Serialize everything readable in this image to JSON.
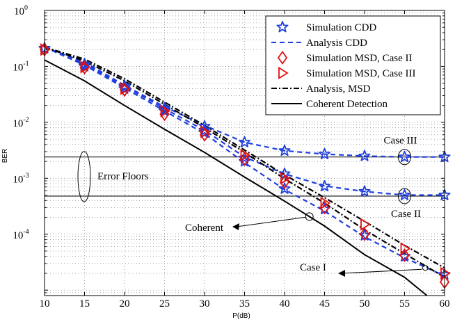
{
  "chart_data": {
    "type": "line",
    "xlabel": "P(dB)",
    "ylabel": "BER",
    "xlim": [
      10,
      60
    ],
    "ylim": [
      8e-06,
      1
    ],
    "yscale": "log",
    "grid": "dotted",
    "legend_position": "top-right",
    "x_ticks": [
      10,
      15,
      20,
      25,
      30,
      35,
      40,
      45,
      50,
      55,
      60
    ],
    "y_ticks": [
      {
        "value": 1,
        "label": "10",
        "exp": "0"
      },
      {
        "value": 0.1,
        "label": "10",
        "exp": "-1"
      },
      {
        "value": 0.01,
        "label": "10",
        "exp": "-2"
      },
      {
        "value": 0.001,
        "label": "10",
        "exp": "-3"
      },
      {
        "value": 0.0001,
        "label": "10",
        "exp": "-4"
      }
    ],
    "series": [
      {
        "name": "Simulation CDD",
        "style": "marker",
        "marker": "star",
        "color": "#1f3fe0",
        "curves": [
          {
            "x": [
              10,
              15,
              20,
              25,
              30,
              35,
              40,
              45,
              50,
              55,
              60
            ],
            "y": [
              0.21,
              0.11,
              0.045,
              0.018,
              0.0085,
              0.0044,
              0.0031,
              0.0027,
              0.0025,
              0.0024,
              0.0024
            ]
          },
          {
            "x": [
              10,
              15,
              20,
              25,
              30,
              35,
              40,
              45,
              50,
              55,
              60
            ],
            "y": [
              0.21,
              0.105,
              0.043,
              0.017,
              0.0072,
              0.0023,
              0.0012,
              0.00072,
              0.00058,
              0.0005,
              0.0005
            ]
          },
          {
            "x": [
              10,
              15,
              20,
              25,
              30,
              35,
              40,
              45,
              50,
              55,
              60
            ],
            "y": [
              0.21,
              0.1,
              0.04,
              0.016,
              0.0065,
              0.002,
              0.00065,
              0.00028,
              9.5e-05,
              4e-05,
              1.9e-05
            ]
          }
        ]
      },
      {
        "name": "Analysis CDD",
        "style": "dashed",
        "color": "#1f3fe0",
        "curves": [
          {
            "x": [
              10,
              15,
              20,
              25,
              30,
              35,
              40,
              45,
              50,
              55,
              60
            ],
            "y": [
              0.22,
              0.12,
              0.046,
              0.019,
              0.0088,
              0.0044,
              0.0031,
              0.0027,
              0.0025,
              0.0024,
              0.0024
            ]
          },
          {
            "x": [
              10,
              15,
              20,
              25,
              30,
              35,
              40,
              45,
              50,
              55,
              60
            ],
            "y": [
              0.22,
              0.112,
              0.044,
              0.0175,
              0.0072,
              0.0024,
              0.0012,
              0.00073,
              0.00058,
              0.0005,
              0.0005
            ]
          },
          {
            "x": [
              10,
              15,
              20,
              25,
              30,
              35,
              40,
              45,
              50,
              55,
              60
            ],
            "y": [
              0.22,
              0.105,
              0.041,
              0.016,
              0.0063,
              0.0019,
              0.00063,
              0.00026,
              9e-05,
              3.8e-05,
              1.8e-05
            ]
          }
        ]
      },
      {
        "name": "Simulation MSD, Case II",
        "style": "marker",
        "marker": "diamond",
        "color": "#e01010",
        "curves": [
          {
            "x": [
              10,
              15,
              20,
              25,
              30,
              35,
              40,
              45,
              50,
              55,
              60
            ],
            "y": [
              0.2,
              0.095,
              0.038,
              0.014,
              0.006,
              0.0022,
              0.00085,
              0.0003,
              0.0001,
              4.2e-05,
              1.4e-05
            ]
          }
        ]
      },
      {
        "name": "Simulation MSD, Case III",
        "style": "marker",
        "marker": "triangle-right",
        "color": "#e01010",
        "curves": [
          {
            "x": [
              10,
              15,
              20,
              25,
              30,
              35,
              40,
              45,
              50,
              55,
              60
            ],
            "y": [
              0.2,
              0.097,
              0.04,
              0.016,
              0.0068,
              0.0026,
              0.001,
              0.00036,
              0.00015,
              5.5e-05,
              2e-05
            ]
          }
        ]
      },
      {
        "name": "Analysis, MSD",
        "style": "dashdot",
        "color": "#000000",
        "curves": [
          {
            "x": [
              10,
              15,
              20,
              25,
              30,
              35,
              40,
              45,
              50,
              55,
              60
            ],
            "y": [
              0.22,
              0.135,
              0.06,
              0.023,
              0.0088,
              0.0032,
              0.00115,
              0.00045,
              0.00017,
              6.3e-05,
              2.5e-05
            ]
          },
          {
            "x": [
              10,
              15,
              20,
              25,
              30,
              35,
              40,
              45,
              50,
              55,
              60
            ],
            "y": [
              0.22,
              0.125,
              0.055,
              0.021,
              0.008,
              0.0029,
              0.00098,
              0.00036,
              0.00012,
              4.5e-05,
              1.7e-05
            ]
          }
        ]
      },
      {
        "name": "Coherent Detection",
        "style": "solid",
        "color": "#000000",
        "curves": [
          {
            "x": [
              10,
              15,
              20,
              25,
              30,
              35,
              40,
              45,
              50,
              55,
              57.8
            ],
            "y": [
              0.13,
              0.055,
              0.02,
              0.0075,
              0.0029,
              0.00105,
              0.00039,
              0.00014,
              4.3e-05,
              1.7e-05,
              8e-06
            ]
          }
        ]
      }
    ],
    "reference_lines": [
      0.0024,
      0.00048
    ],
    "annotations": [
      {
        "text": "Error Floors"
      },
      {
        "text": "Case III"
      },
      {
        "text": "Case II"
      },
      {
        "text": "Coherent"
      },
      {
        "text": "Case I"
      }
    ]
  }
}
